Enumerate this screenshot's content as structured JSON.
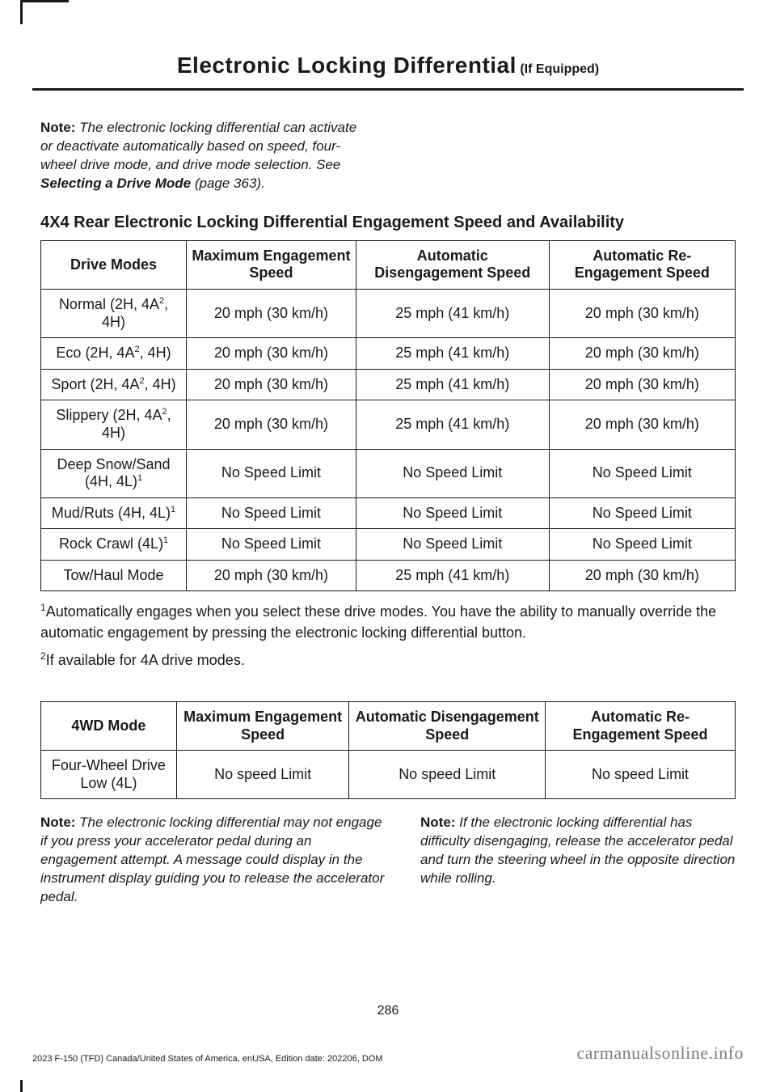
{
  "header": {
    "title": "Electronic Locking Differential",
    "suffix": " (If Equipped)"
  },
  "note1": {
    "lead": "Note:",
    "body": " The electronic locking differential can activate or deactivate automatically based on speed, four-wheel drive mode, and drive mode selection. See ",
    "bold": "Selecting a Drive Mode",
    "tail": " (page 363)."
  },
  "section_title": "4X4 Rear Electronic Locking Differential Engagement Speed and Availability",
  "table1": {
    "headers": [
      "Drive Modes",
      "Maximum Engagement Speed",
      "Automatic Disengagement Speed",
      "Automatic Re-Engagement Speed"
    ],
    "rows": [
      {
        "mode": "Normal (2H, 4A",
        "sup": "2",
        "mode_tail": ", 4H)",
        "c1": "20 mph (30 km/h)",
        "c2": "25 mph (41 km/h)",
        "c3": "20 mph (30 km/h)"
      },
      {
        "mode": "Eco (2H, 4A",
        "sup": "2",
        "mode_tail": ", 4H)",
        "c1": "20 mph (30 km/h)",
        "c2": "25 mph (41 km/h)",
        "c3": "20 mph (30 km/h)"
      },
      {
        "mode": "Sport (2H, 4A",
        "sup": "2",
        "mode_tail": ", 4H)",
        "c1": "20 mph (30 km/h)",
        "c2": "25 mph (41 km/h)",
        "c3": "20 mph (30 km/h)"
      },
      {
        "mode": "Slippery (2H, 4A",
        "sup": "2",
        "mode_tail": ", 4H)",
        "c1": "20 mph (30 km/h)",
        "c2": "25 mph (41 km/h)",
        "c3": "20 mph (30 km/h)"
      },
      {
        "mode": "Deep Snow/Sand (4H, 4L)",
        "sup": "1",
        "mode_tail": "",
        "c1": "No Speed Limit",
        "c2": "No Speed Limit",
        "c3": "No Speed Limit"
      },
      {
        "mode": "Mud/Ruts (4H, 4L)",
        "sup": "1",
        "mode_tail": "",
        "c1": "No Speed Limit",
        "c2": "No Speed Limit",
        "c3": "No Speed Limit"
      },
      {
        "mode": "Rock Crawl (4L)",
        "sup": "1",
        "mode_tail": "",
        "c1": "No Speed Limit",
        "c2": "No Speed Limit",
        "c3": "No Speed Limit"
      },
      {
        "mode": "Tow/Haul Mode",
        "sup": "",
        "mode_tail": "",
        "c1": "20 mph (30 km/h)",
        "c2": "25 mph (41 km/h)",
        "c3": "20 mph (30 km/h)"
      }
    ]
  },
  "footnote1": {
    "sup": "1",
    "text": "Automatically engages when you select these drive modes. You have the ability to manually override the automatic engagement by pressing the electronic locking differential button."
  },
  "footnote2": {
    "sup": "2",
    "text": "If available for 4A drive modes."
  },
  "table2": {
    "headers": [
      "4WD Mode",
      "Maximum Engagement Speed",
      "Automatic Disengagement Speed",
      "Automatic Re-Engagement Speed"
    ],
    "rows": [
      {
        "mode": "Four-Wheel Drive Low (4L)",
        "c1": "No speed Limit",
        "c2": "No speed Limit",
        "c3": "No speed Limit"
      }
    ]
  },
  "note2": {
    "lead": "Note:",
    "body": " The electronic locking differential may not engage if you press your accelerator pedal during an engagement attempt. A message could display in the instrument display guiding you to release the accelerator pedal."
  },
  "note3": {
    "lead": "Note:",
    "body": " If the electronic locking differential has difficulty disengaging, release the accelerator pedal and turn the steering wheel in the opposite direction while rolling."
  },
  "page_number": "286",
  "footer_left": "2023 F-150 (TFD) Canada/United States of America, enUSA, Edition date: 202206, DOM",
  "footer_right": "carmanualsonline.info"
}
